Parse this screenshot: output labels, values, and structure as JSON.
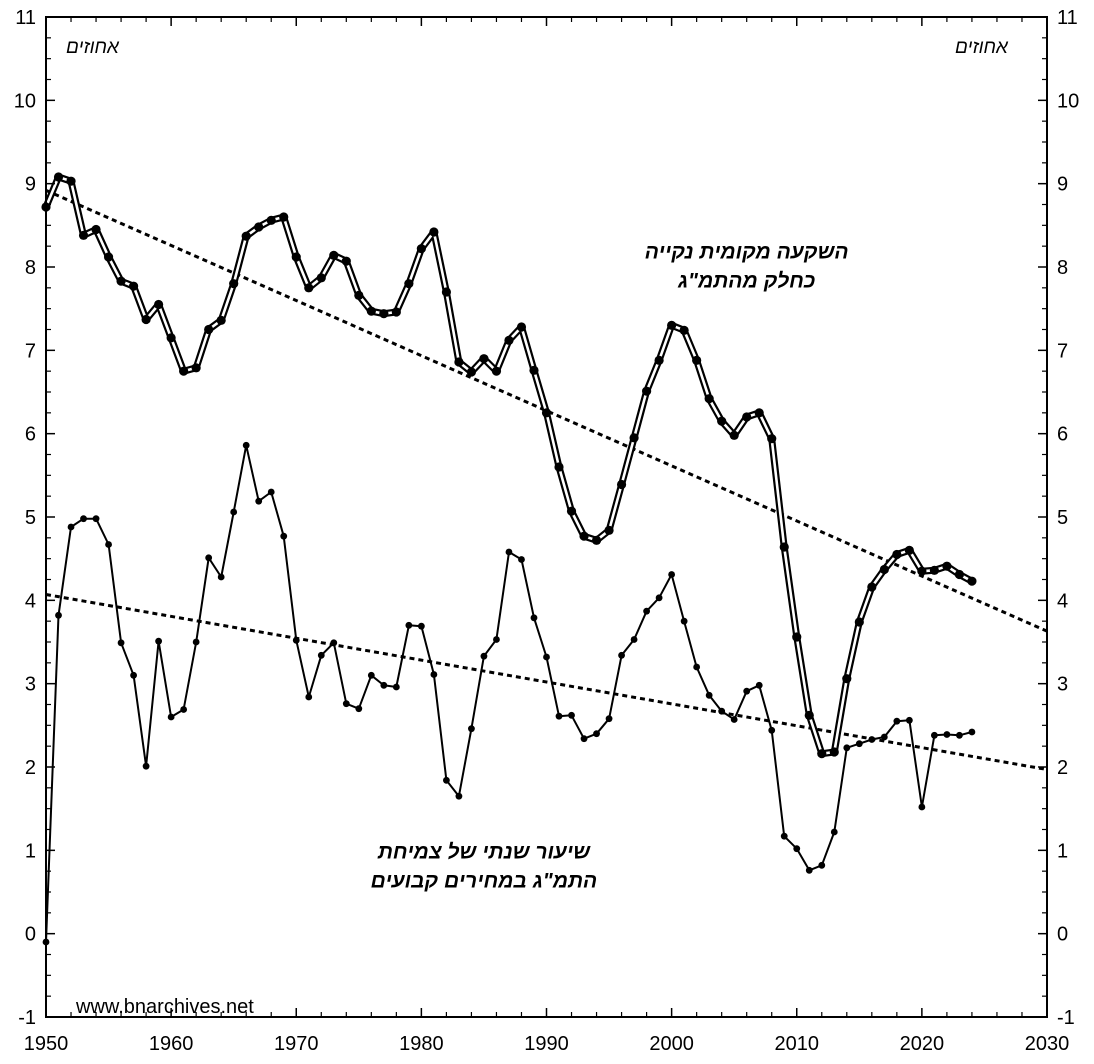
{
  "chart_data": {
    "type": "line",
    "xlim": [
      1950,
      2030
    ],
    "ylim": [
      -1,
      11
    ],
    "x_ticks": [
      1950,
      1960,
      1970,
      1980,
      1990,
      2000,
      2010,
      2020,
      2030
    ],
    "y_ticks": [
      -1,
      0,
      1,
      2,
      3,
      4,
      5,
      6,
      7,
      8,
      9,
      10,
      11
    ],
    "x_tick_labels": [
      "1950",
      "1960",
      "1970",
      "1980",
      "1990",
      "2000",
      "2010",
      "2020",
      "2030"
    ],
    "y_tick_labels": [
      "-1",
      "0",
      "1",
      "2",
      "3",
      "4",
      "5",
      "6",
      "7",
      "8",
      "9",
      "10",
      "11"
    ],
    "unit_left": "אחוזים",
    "unit_right": "אחוזים",
    "grid": false,
    "watermark": "www.bnarchives.net",
    "annotations": [
      {
        "text_lines": [
          "השקעה מקומית נקייה",
          "כחלק מהתמ\"ג"
        ],
        "anchor": [
          2006,
          8.1
        ],
        "series": "investment"
      },
      {
        "text_lines": [
          "שיעור שנתי של צמיחת",
          "התמ\"ג במחירים קבועים"
        ],
        "anchor": [
          1985,
          0.9
        ],
        "series": "growth"
      }
    ],
    "series": [
      {
        "id": "investment",
        "style": "double",
        "x": [
          1950,
          1951,
          1952,
          1953,
          1954,
          1955,
          1956,
          1957,
          1958,
          1959,
          1960,
          1961,
          1962,
          1963,
          1964,
          1965,
          1966,
          1967,
          1968,
          1969,
          1970,
          1971,
          1972,
          1973,
          1974,
          1975,
          1976,
          1977,
          1978,
          1979,
          1980,
          1981,
          1982,
          1983,
          1984,
          1985,
          1986,
          1987,
          1988,
          1989,
          1990,
          1991,
          1992,
          1993,
          1994,
          1995,
          1996,
          1997,
          1998,
          1999,
          2000,
          2001,
          2002,
          2003,
          2004,
          2005,
          2006,
          2007,
          2008,
          2009,
          2010,
          2011,
          2012,
          2013,
          2014,
          2015,
          2016,
          2017,
          2018,
          2019,
          2020,
          2021,
          2022,
          2023,
          2024
        ],
        "values": [
          8.72,
          9.08,
          9.03,
          8.38,
          8.45,
          8.12,
          7.83,
          7.77,
          7.37,
          7.55,
          7.15,
          6.75,
          6.79,
          7.25,
          7.36,
          7.8,
          8.37,
          8.48,
          8.56,
          8.6,
          8.12,
          7.75,
          7.87,
          8.14,
          8.07,
          7.66,
          7.47,
          7.44,
          7.46,
          7.8,
          8.22,
          8.42,
          7.7,
          6.86,
          6.74,
          6.9,
          6.75,
          7.12,
          7.28,
          6.76,
          6.25,
          5.6,
          5.07,
          4.77,
          4.72,
          4.84,
          5.39,
          5.95,
          6.51,
          6.88,
          7.3,
          7.24,
          6.88,
          6.42,
          6.15,
          5.98,
          6.2,
          6.25,
          5.94,
          4.64,
          3.56,
          2.62,
          2.16,
          2.18,
          3.06,
          3.74,
          4.16,
          4.37,
          4.55,
          4.6,
          4.35,
          4.36,
          4.41,
          4.31,
          4.23
        ]
      },
      {
        "id": "growth",
        "style": "single",
        "x": [
          1950,
          1951,
          1952,
          1953,
          1954,
          1955,
          1956,
          1957,
          1958,
          1959,
          1960,
          1961,
          1962,
          1963,
          1964,
          1965,
          1966,
          1967,
          1968,
          1969,
          1970,
          1971,
          1972,
          1973,
          1974,
          1975,
          1976,
          1977,
          1978,
          1979,
          1980,
          1981,
          1982,
          1983,
          1984,
          1985,
          1986,
          1987,
          1988,
          1989,
          1990,
          1991,
          1992,
          1993,
          1994,
          1995,
          1996,
          1997,
          1998,
          1999,
          2000,
          2001,
          2002,
          2003,
          2004,
          2005,
          2006,
          2007,
          2008,
          2009,
          2010,
          2011,
          2012,
          2013,
          2014,
          2015,
          2016,
          2017,
          2018,
          2019,
          2020,
          2021,
          2022,
          2023,
          2024
        ],
        "values": [
          -0.1,
          3.82,
          4.88,
          4.98,
          4.98,
          4.67,
          3.49,
          3.1,
          2.01,
          3.51,
          2.6,
          2.69,
          3.5,
          4.51,
          4.28,
          5.06,
          5.86,
          5.19,
          5.3,
          4.77,
          3.52,
          2.84,
          3.34,
          3.49,
          2.76,
          2.7,
          3.1,
          2.98,
          2.96,
          3.7,
          3.69,
          3.11,
          1.84,
          1.65,
          2.46,
          3.33,
          3.53,
          4.58,
          4.49,
          3.79,
          3.32,
          2.61,
          2.62,
          2.34,
          2.4,
          2.58,
          3.34,
          3.53,
          3.87,
          4.03,
          4.31,
          3.75,
          3.2,
          2.86,
          2.67,
          2.57,
          2.91,
          2.98,
          2.44,
          1.17,
          1.02,
          0.76,
          0.82,
          1.22,
          2.23,
          2.28,
          2.33,
          2.36,
          2.55,
          2.56,
          1.52,
          2.38,
          2.39,
          2.38,
          2.42
        ]
      }
    ],
    "trendlines": [
      {
        "id": "investment-trend",
        "style": "dotted",
        "x": [
          1950,
          2030
        ],
        "values": [
          8.92,
          3.63
        ]
      },
      {
        "id": "growth-trend",
        "style": "dotted",
        "x": [
          1950,
          2030
        ],
        "values": [
          4.07,
          1.97
        ]
      }
    ]
  }
}
